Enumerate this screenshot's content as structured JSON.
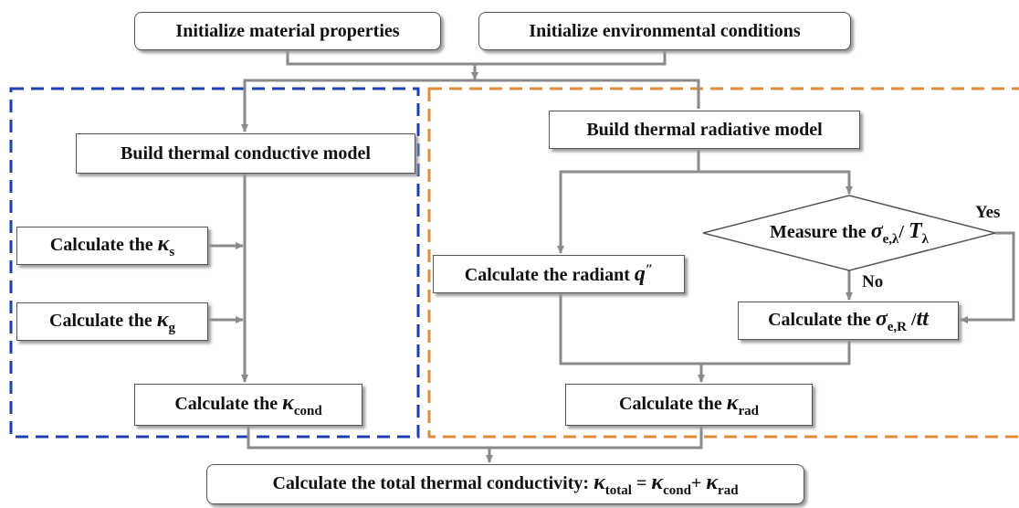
{
  "nodes": [
    {
      "label": [
        {
          "t": "Initialize material properties"
        }
      ]
    },
    {
      "label": [
        {
          "t": "Initialize environmental conditions"
        }
      ]
    },
    {
      "label": [
        {
          "t": "Build thermal conductive model"
        }
      ]
    },
    {
      "label": [
        {
          "t": "Build thermal radiative model"
        }
      ]
    },
    {
      "label": [
        {
          "t": "Calculate the "
        },
        {
          "i": "κ"
        },
        {
          "sub": "s"
        }
      ]
    },
    {
      "label": [
        {
          "t": "Calculate the "
        },
        {
          "i": "κ"
        },
        {
          "sub": "g"
        }
      ]
    },
    {
      "label": [
        {
          "t": "Calculate the "
        },
        {
          "i": "κ"
        },
        {
          "sub": "cond"
        }
      ]
    },
    {
      "label": [
        {
          "t": "Measure the "
        },
        {
          "i": "σ"
        },
        {
          "sub": "e,λ"
        },
        {
          "t": "/ "
        },
        {
          "i": "T"
        },
        {
          "sub": "λ"
        }
      ]
    },
    {
      "label": [
        {
          "t": "Calculate the radiant "
        },
        {
          "i": "q"
        },
        {
          "sup": "″"
        }
      ]
    },
    {
      "label": [
        {
          "t": "Calculate the "
        },
        {
          "i": "σ"
        },
        {
          "sub": "e,R"
        },
        {
          "t": " /"
        },
        {
          "i": "tt"
        }
      ]
    },
    {
      "label": [
        {
          "t": "Calculate the "
        },
        {
          "i": "κ"
        },
        {
          "sub": "rad"
        }
      ]
    },
    {
      "label": [
        {
          "t": "Calculate the total thermal conductivity: "
        },
        {
          "i": "κ"
        },
        {
          "sub": "total"
        },
        {
          "t": " = "
        },
        {
          "i": "κ"
        },
        {
          "sub": "cond"
        },
        {
          "t": "+ "
        },
        {
          "i": "κ"
        },
        {
          "sub": "rad"
        }
      ]
    }
  ],
  "edge_labels": [
    "Yes",
    "No"
  ]
}
